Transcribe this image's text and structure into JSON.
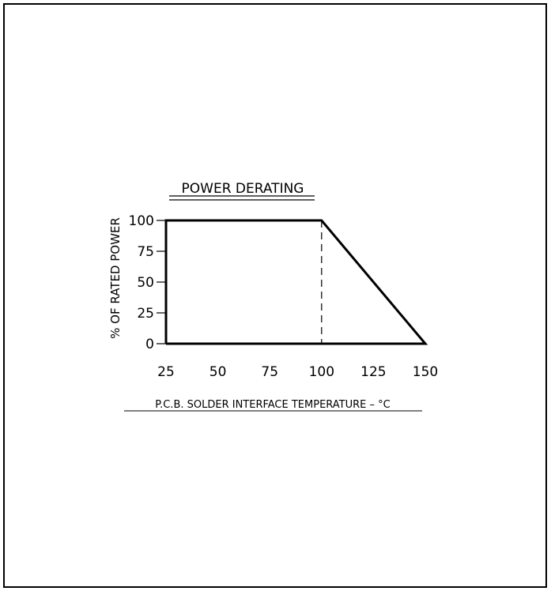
{
  "chart_data": {
    "type": "line",
    "title": "POWER DERATING",
    "xlabel": "P.C.B. SOLDER INTERFACE TEMPERATURE – °C",
    "ylabel": "% OF RATED POWER",
    "x_ticks": [
      25,
      50,
      75,
      100,
      125,
      150
    ],
    "y_ticks": [
      0,
      25,
      50,
      75,
      100
    ],
    "xlim": [
      25,
      150
    ],
    "ylim": [
      0,
      100
    ],
    "grid": false,
    "series": [
      {
        "x": [
          25,
          25,
          100,
          150,
          25
        ],
        "y": [
          0,
          100,
          100,
          0,
          0
        ]
      }
    ],
    "reference_lines": [
      {
        "x": 100,
        "style": "dashed"
      }
    ],
    "line_color": "#000000"
  }
}
